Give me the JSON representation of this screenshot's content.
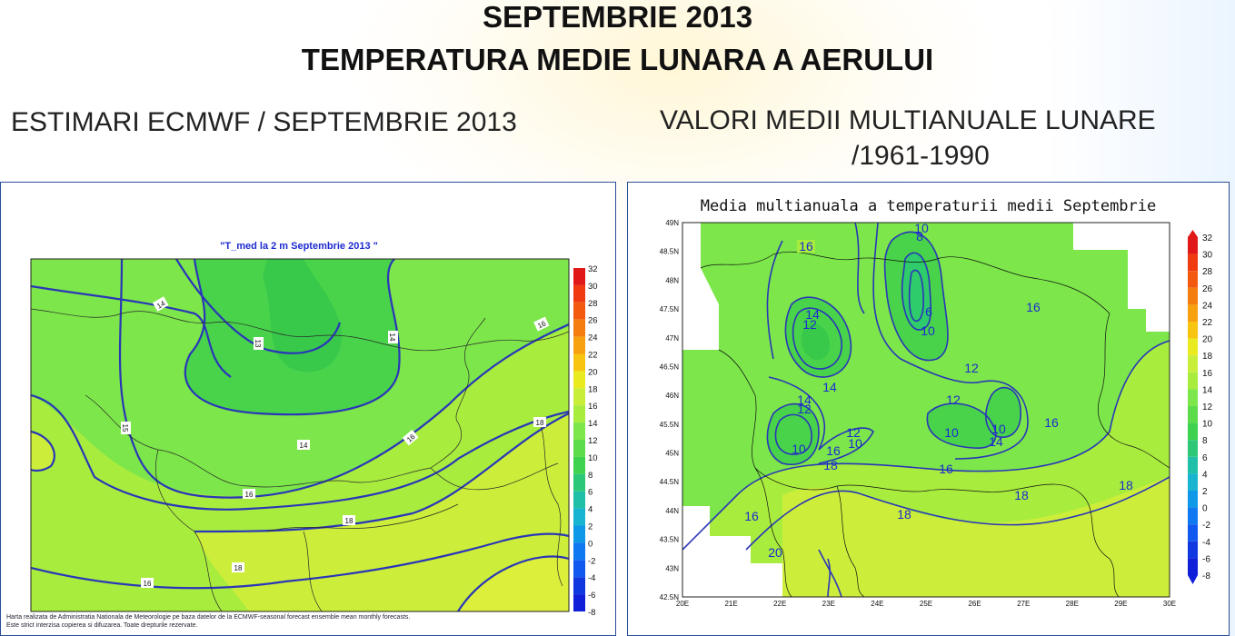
{
  "header": {
    "title_line1": "SEPTEMBRIE 2013",
    "title_line2": "TEMPERATURA MEDIE LUNARA A AERULUI"
  },
  "left": {
    "heading": "ESTIMARI ECMWF / SEPTEMBRIE 2013",
    "map_title": "\"T_med la 2 m Septembrie 2013 \"",
    "scale_labels": [
      "32",
      "30",
      "28",
      "26",
      "24",
      "22",
      "20",
      "18",
      "16",
      "14",
      "12",
      "10",
      "8",
      "6",
      "4",
      "2",
      "0",
      "-2",
      "-4",
      "-6",
      "-8"
    ],
    "contour_labels": [
      "14",
      "13",
      "14",
      "16",
      "15",
      "14",
      "16",
      "18",
      "16",
      "18",
      "16",
      "18"
    ],
    "footer_line1": "Harta realizata de Administratia Nationala de Meteorologie pe baza datelor de la ECMWF-seasonal forecast ensemble mean monthly forecasts.",
    "footer_line2": "Este strict interzisa copierea si difuzarea. Toate drepturile rezervate."
  },
  "right": {
    "heading_line1": "VALORI MEDII MULTIANUALE LUNARE",
    "heading_line2": "/1961-1990",
    "map_title": "Media multianuala a temperaturii medii Septembrie",
    "lat_labels": [
      "49N",
      "48.5N",
      "48N",
      "47.5N",
      "47N",
      "46.5N",
      "46N",
      "45.5N",
      "45N",
      "44.5N",
      "44N",
      "43.5N",
      "43N",
      "42.5N"
    ],
    "lon_labels": [
      "20E",
      "21E",
      "22E",
      "23E",
      "24E",
      "25E",
      "26E",
      "27E",
      "28E",
      "29E",
      "30E"
    ],
    "scale_labels": [
      "32",
      "30",
      "28",
      "26",
      "24",
      "22",
      "20",
      "18",
      "16",
      "14",
      "12",
      "10",
      "8",
      "6",
      "4",
      "2",
      "0",
      "-2",
      "-4",
      "-6",
      "-8"
    ],
    "contour_labels": [
      "16",
      "10",
      "8",
      "16",
      "14",
      "12",
      "6",
      "10",
      "12",
      "14",
      "14",
      "12",
      "12",
      "10",
      "16",
      "12",
      "10",
      "10",
      "14",
      "10",
      "16",
      "18",
      "16",
      "18",
      "16",
      "18",
      "18",
      "20"
    ]
  }
}
